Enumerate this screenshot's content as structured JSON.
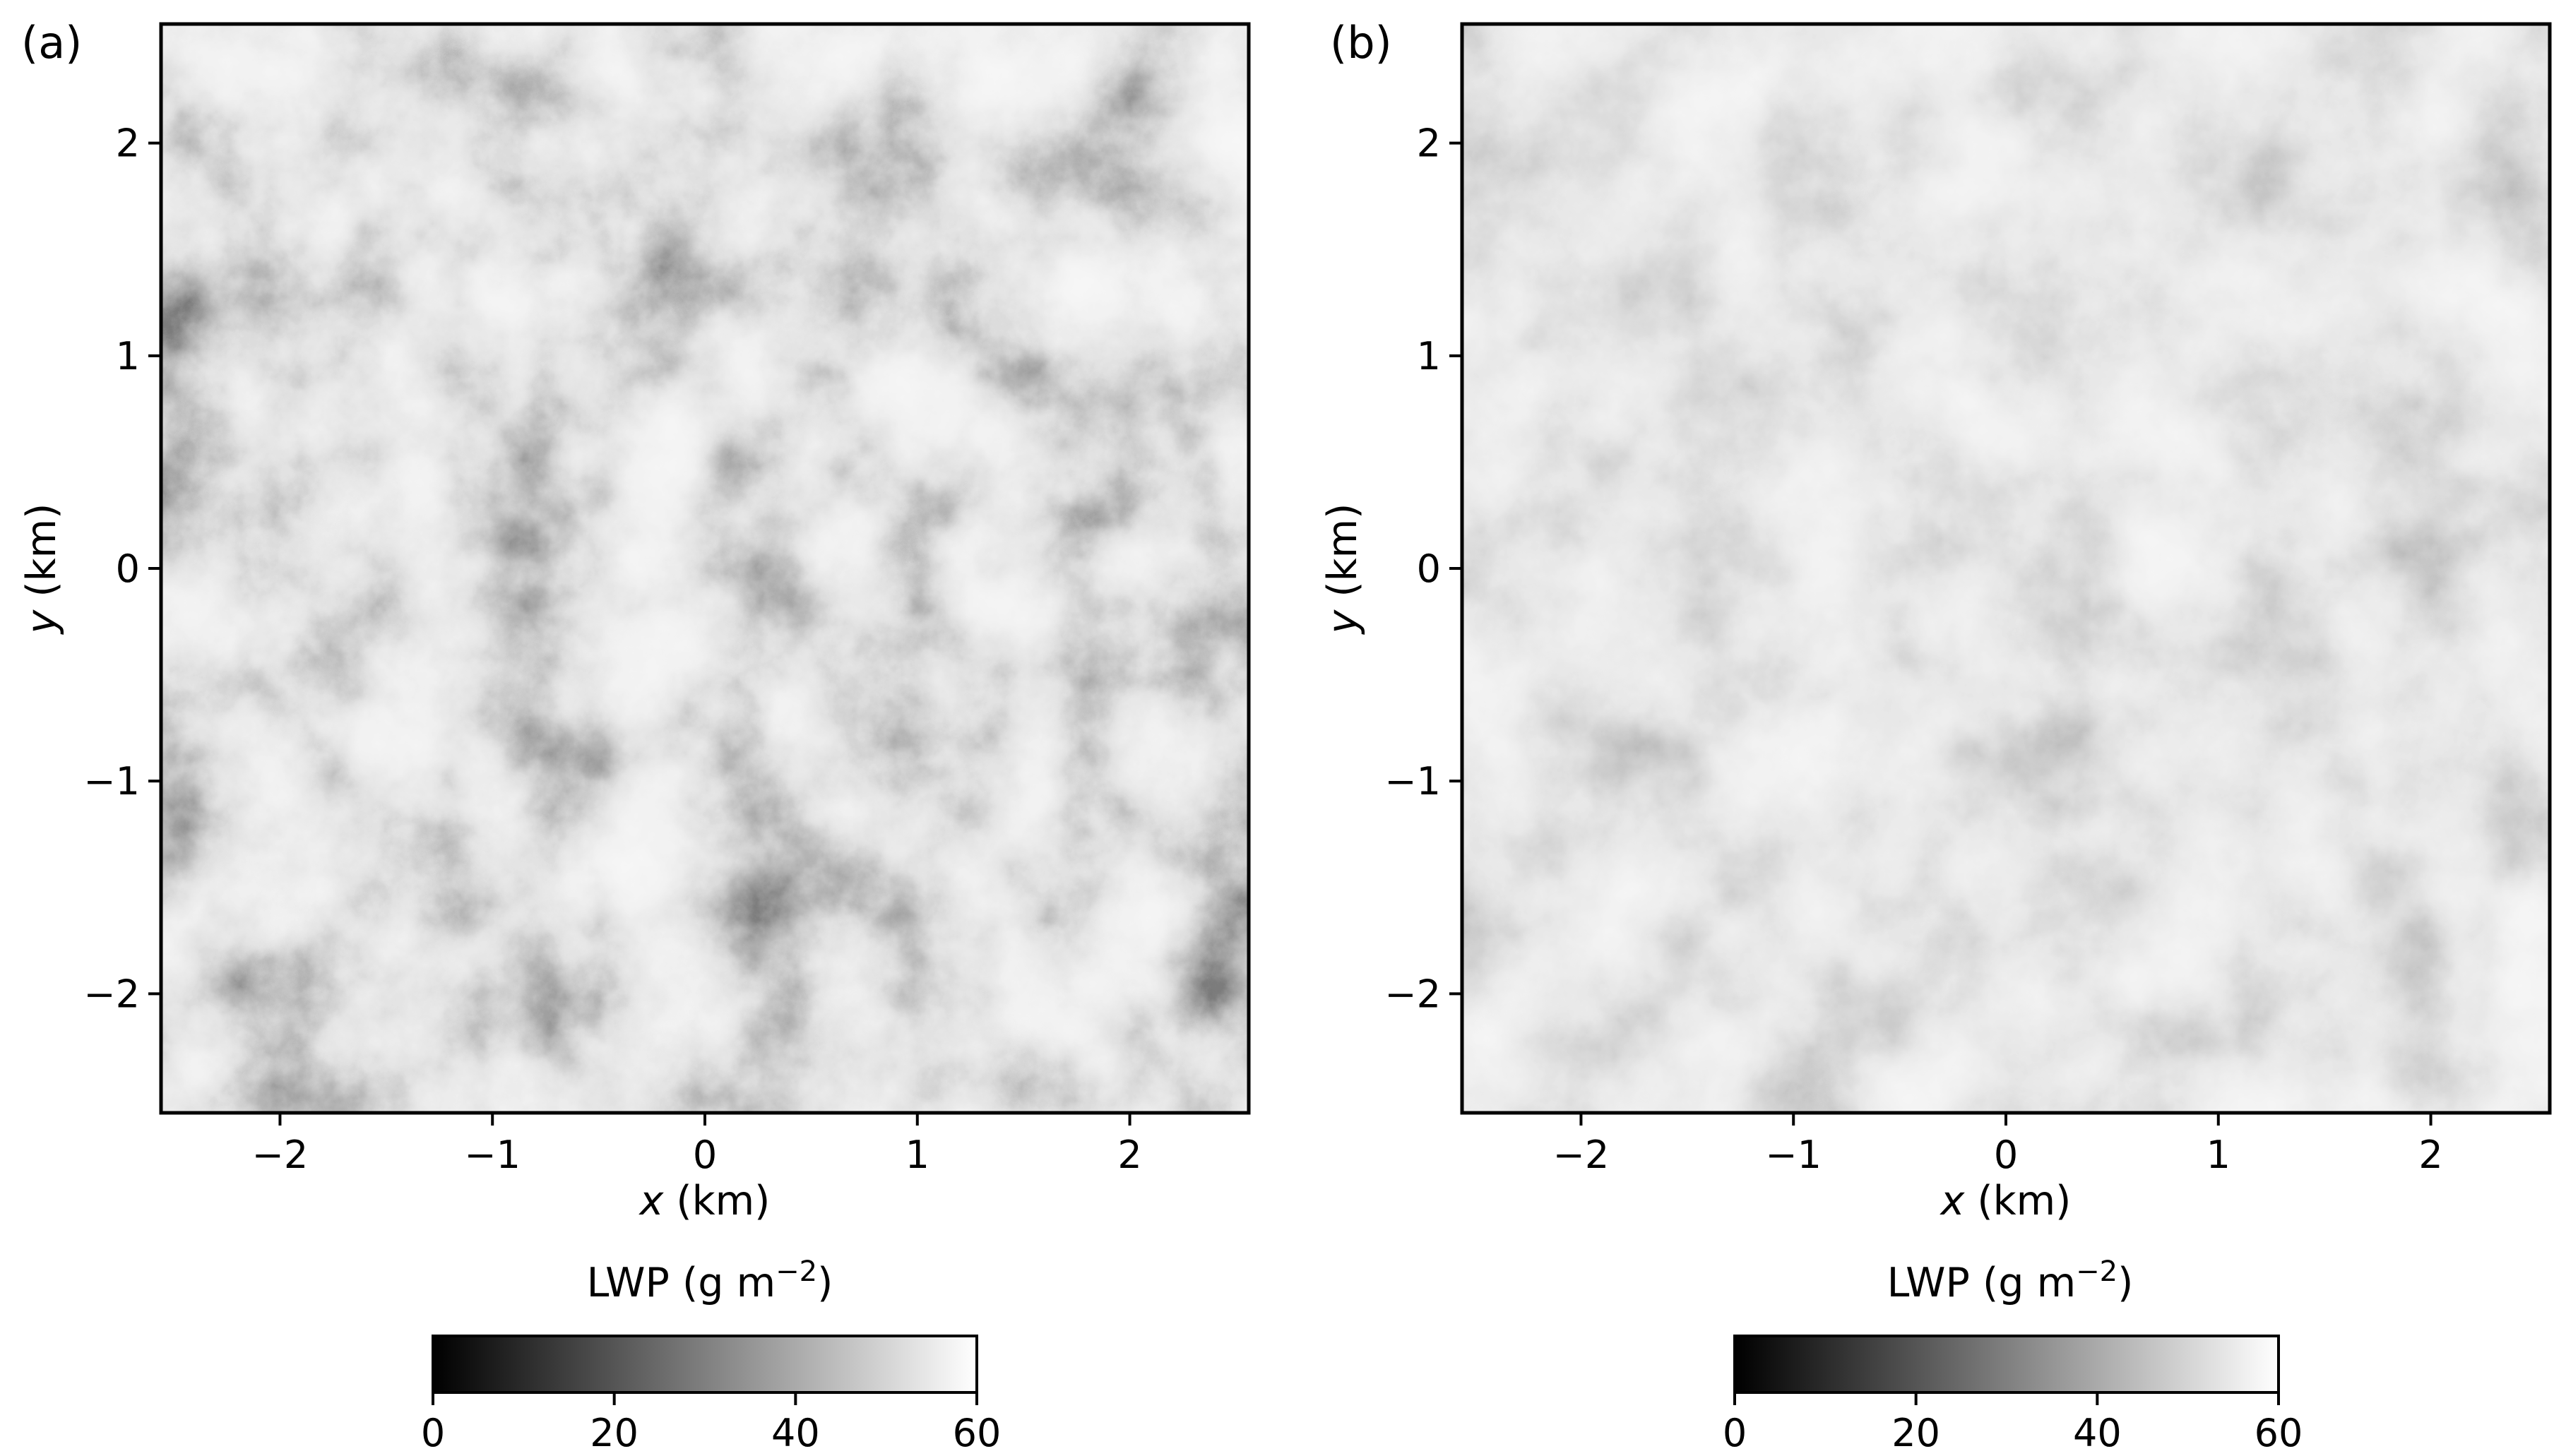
{
  "figure": {
    "colormap": {
      "name": "Greys_r",
      "low_color": "#000000",
      "high_color": "#ffffff"
    }
  },
  "chart_data": [
    {
      "type": "heatmap",
      "panel_label": "(a)",
      "xlabel_var": "x",
      "xlabel_unit": " (km)",
      "ylabel_var": "y",
      "ylabel_unit": " (km)",
      "xlim": [
        -2.56,
        2.56
      ],
      "ylim": [
        -2.56,
        2.56
      ],
      "xticks": [
        -2,
        -1,
        0,
        1,
        2
      ],
      "yticks": [
        2,
        1,
        0,
        -1,
        -2
      ],
      "xtick_labels": [
        "−2",
        "−1",
        "0",
        "1",
        "2"
      ],
      "ytick_labels": [
        "2",
        "1",
        "0",
        "−1",
        "−2"
      ],
      "colorbar": {
        "label_main": "LWP (g m",
        "label_exp": "−2",
        "label_close": ")",
        "range": [
          0,
          60
        ],
        "ticks": [
          0,
          20,
          40,
          60
        ],
        "tick_labels": [
          "0",
          "20",
          "40",
          "60"
        ],
        "orientation": "horizontal",
        "placement": "bottom"
      },
      "field_description": "cloud liquid water path field; bright cellular regions (~40–60 g m−2) separated by dark narrow channels (~0–20 g m−2)"
    },
    {
      "type": "heatmap",
      "panel_label": "(b)",
      "xlabel_var": "x",
      "xlabel_unit": " (km)",
      "ylabel_var": "y",
      "ylabel_unit": " (km)",
      "xlim": [
        -2.56,
        2.56
      ],
      "ylim": [
        -2.56,
        2.56
      ],
      "xticks": [
        -2,
        -1,
        0,
        1,
        2
      ],
      "yticks": [
        2,
        1,
        0,
        -1,
        -2
      ],
      "xtick_labels": [
        "−2",
        "−1",
        "0",
        "1",
        "2"
      ],
      "ytick_labels": [
        "2",
        "1",
        "0",
        "−1",
        "−2"
      ],
      "colorbar": {
        "label_main": "LWP (g m",
        "label_exp": "−2",
        "label_close": ")",
        "range": [
          0,
          60
        ],
        "ticks": [
          0,
          20,
          40,
          60
        ],
        "tick_labels": [
          "0",
          "20",
          "40",
          "60"
        ],
        "orientation": "horizontal",
        "placement": "bottom"
      },
      "field_description": "smoother cloud liquid water path field; same cellular pattern with fewer dark channels"
    }
  ]
}
